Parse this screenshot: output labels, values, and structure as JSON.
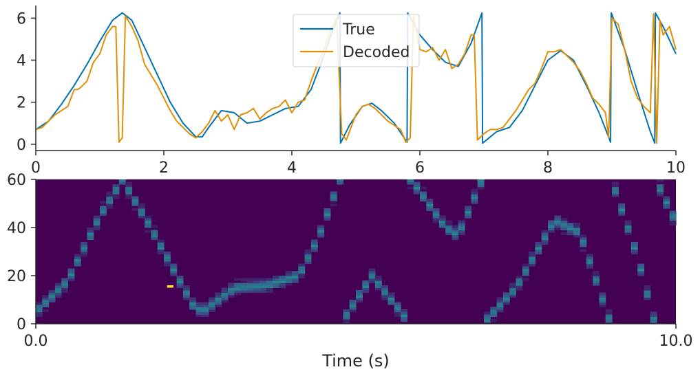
{
  "chart_data": [
    {
      "type": "line",
      "xlim": [
        0,
        10
      ],
      "ylim": [
        -0.3,
        6.6
      ],
      "xticks": [
        0,
        2,
        4,
        6,
        8,
        10
      ],
      "xtick_labels": [
        "0",
        "2",
        "4",
        "6",
        "8",
        "10"
      ],
      "yticks": [
        0,
        2,
        4,
        6
      ],
      "ytick_labels": [
        "0",
        "2",
        "4",
        "6"
      ],
      "legend_position": "top-center",
      "series": [
        {
          "name": "True",
          "color": "#0072b2",
          "x": [
            0,
            0.2,
            0.4,
            0.6,
            0.8,
            1.0,
            1.2,
            1.35,
            1.5,
            1.7,
            1.9,
            2.1,
            2.3,
            2.5,
            2.6,
            2.7,
            2.9,
            3.1,
            3.3,
            3.5,
            3.7,
            3.9,
            4.1,
            4.3,
            4.45,
            4.6,
            4.75,
            4.76,
            4.9,
            5.1,
            5.25,
            5.4,
            5.6,
            5.8,
            5.81,
            6.0,
            6.2,
            6.4,
            6.6,
            6.8,
            6.97,
            6.98,
            7.2,
            7.4,
            7.6,
            7.8,
            8.0,
            8.2,
            8.4,
            8.6,
            8.8,
            8.98,
            8.99,
            9.2,
            9.4,
            9.6,
            9.67,
            9.68,
            9.8,
            10.0
          ],
          "y": [
            0.7,
            1.1,
            1.9,
            2.8,
            3.8,
            4.9,
            5.9,
            6.25,
            5.9,
            4.6,
            3.3,
            2.0,
            1.0,
            0.35,
            0.35,
            0.8,
            1.6,
            1.5,
            1.0,
            1.1,
            1.4,
            1.7,
            1.8,
            2.6,
            3.8,
            5.1,
            6.25,
            0.05,
            0.9,
            1.8,
            1.95,
            1.6,
            1.0,
            0.1,
            6.25,
            5.2,
            4.5,
            3.9,
            3.7,
            4.8,
            6.25,
            0.05,
            0.6,
            0.8,
            1.6,
            2.8,
            4.0,
            4.45,
            4.0,
            2.8,
            1.5,
            0.1,
            6.25,
            4.5,
            2.5,
            0.6,
            0.05,
            6.25,
            5.6,
            4.3
          ]
        },
        {
          "name": "Decoded",
          "color": "#de8f05",
          "x": [
            0,
            0.1,
            0.2,
            0.3,
            0.4,
            0.5,
            0.6,
            0.65,
            0.7,
            0.8,
            0.9,
            1.0,
            1.1,
            1.2,
            1.25,
            1.3,
            1.35,
            1.4,
            1.5,
            1.6,
            1.7,
            1.8,
            1.9,
            2.0,
            2.1,
            2.2,
            2.3,
            2.4,
            2.5,
            2.6,
            2.7,
            2.8,
            2.9,
            3.0,
            3.1,
            3.2,
            3.3,
            3.4,
            3.5,
            3.6,
            3.7,
            3.8,
            3.9,
            4.0,
            4.1,
            4.2,
            4.3,
            4.4,
            4.5,
            4.6,
            4.7,
            4.78,
            4.85,
            4.9,
            5.0,
            5.1,
            5.2,
            5.3,
            5.4,
            5.5,
            5.6,
            5.7,
            5.78,
            5.85,
            5.9,
            6.0,
            6.1,
            6.2,
            6.3,
            6.4,
            6.5,
            6.6,
            6.7,
            6.8,
            6.85,
            6.9,
            7.0,
            7.1,
            7.2,
            7.3,
            7.4,
            7.5,
            7.6,
            7.7,
            7.8,
            7.9,
            8.0,
            8.1,
            8.2,
            8.3,
            8.4,
            8.5,
            8.6,
            8.7,
            8.8,
            8.9,
            8.95,
            9.0,
            9.1,
            9.2,
            9.3,
            9.4,
            9.5,
            9.6,
            9.65,
            9.7,
            9.75,
            9.8,
            9.9,
            10.0
          ],
          "y": [
            0.7,
            0.8,
            1.1,
            1.4,
            1.6,
            1.8,
            2.6,
            2.6,
            2.7,
            3.0,
            3.9,
            4.3,
            5.2,
            5.6,
            5.6,
            0.1,
            0.3,
            6.1,
            5.6,
            4.9,
            3.8,
            3.3,
            2.8,
            2.2,
            1.6,
            1.1,
            0.8,
            0.5,
            0.3,
            0.6,
            1.0,
            1.6,
            1.1,
            1.4,
            0.7,
            1.4,
            1.5,
            1.7,
            1.2,
            1.5,
            1.7,
            1.8,
            2.1,
            1.5,
            2.0,
            2.1,
            3.0,
            3.8,
            4.5,
            5.4,
            6.0,
            0.5,
            0.2,
            0.6,
            1.4,
            1.8,
            1.9,
            1.7,
            1.4,
            1.1,
            0.9,
            0.7,
            0.1,
            0.3,
            6.1,
            4.5,
            4.4,
            4.6,
            4.0,
            4.5,
            3.6,
            3.8,
            4.3,
            5.2,
            5.2,
            0.2,
            0.5,
            0.7,
            0.7,
            0.8,
            1.2,
            1.6,
            2.1,
            2.6,
            2.9,
            3.6,
            4.4,
            4.4,
            4.5,
            4.2,
            3.9,
            3.5,
            2.9,
            2.2,
            1.9,
            1.5,
            0.3,
            6.0,
            5.7,
            4.5,
            3.0,
            2.2,
            1.8,
            1.5,
            6.2,
            0.05,
            5.9,
            5.2,
            5.6,
            4.5
          ]
        }
      ]
    },
    {
      "type": "heatmap",
      "colormap": "viridis",
      "xlim": [
        0,
        10
      ],
      "ylim": [
        0,
        60
      ],
      "xticks": [
        0,
        10
      ],
      "xtick_labels": [
        "0.0",
        "10.0"
      ],
      "yticks": [
        0,
        20,
        40,
        60
      ],
      "ytick_labels": [
        "0",
        "20",
        "40",
        "60"
      ],
      "xlabel": "Time (s)",
      "n_time_bins": 100,
      "n_position_bins": 60,
      "ridge_time": [
        0,
        0.5,
        1.0,
        1.35,
        1.75,
        2.1,
        2.45,
        2.6,
        3.1,
        3.6,
        4.1,
        4.4,
        4.75,
        4.76,
        5.25,
        5.85,
        5.86,
        6.4,
        6.6,
        6.97,
        6.98,
        7.5,
        8.1,
        8.5,
        8.98,
        8.99,
        9.4,
        9.67,
        9.68,
        10.0
      ],
      "ridge_position": [
        5,
        18,
        45,
        60,
        42,
        25,
        8,
        5,
        15,
        16,
        20,
        35,
        60,
        0,
        20,
        0,
        60,
        40,
        37,
        60,
        0,
        15,
        43,
        38,
        0,
        60,
        28,
        0,
        60,
        42
      ],
      "hot_spot": {
        "time": 2.1,
        "position": 15.5,
        "value": 1.0
      },
      "background_color": "#440154"
    }
  ]
}
